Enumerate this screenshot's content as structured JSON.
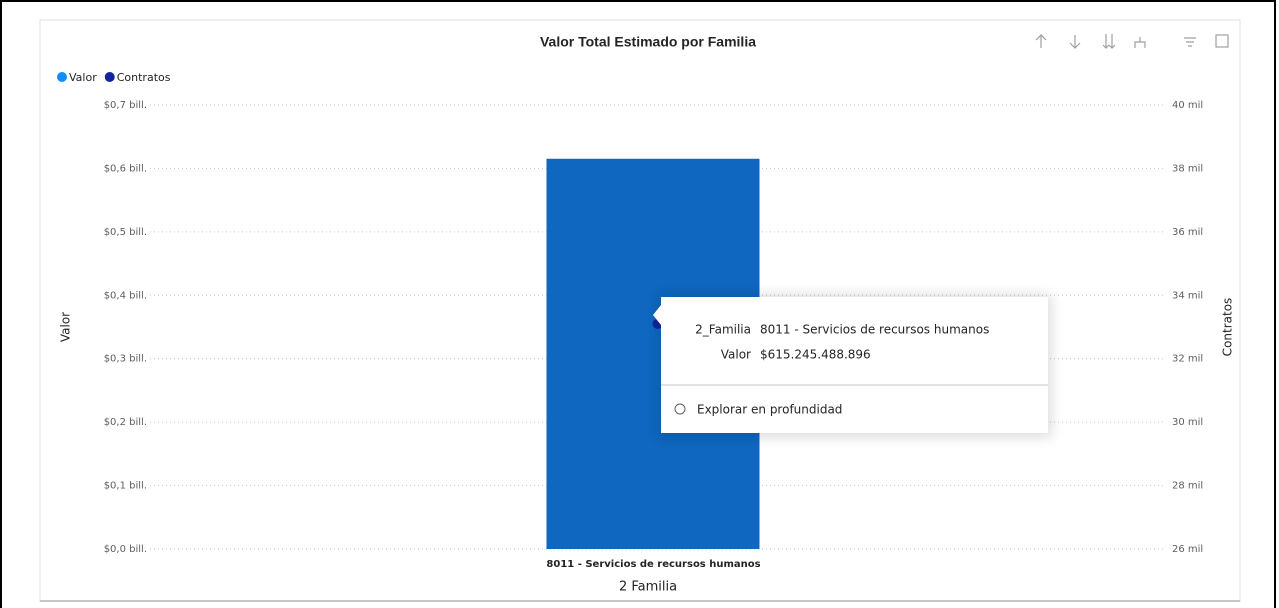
{
  "chart_data": {
    "type": "bar-line",
    "title": "Valor Total Estimado por Familia",
    "categories": [
      "8011 - Servicios de recursos humanos"
    ],
    "x_label": "2 Familia",
    "y_label": "Valor",
    "y2_label": "Contratos",
    "series": [
      {
        "name": "Valor",
        "type": "bar",
        "color": "#0f67bf",
        "legend_color": "#118dff",
        "values": [
          615245488896
        ],
        "value_labels": [
          "$615.245.488.896"
        ]
      },
      {
        "name": "Contratos",
        "type": "line",
        "axis": "y2",
        "color": "#12239e",
        "values": [
          33100
        ]
      }
    ],
    "ylim": [
      0,
      700000000000
    ],
    "yticks": [
      {
        "value": 0,
        "label": "$0,0 bill."
      },
      {
        "value": 100000000000,
        "label": "$0,1 bill."
      },
      {
        "value": 200000000000,
        "label": "$0,2 bill."
      },
      {
        "value": 300000000000,
        "label": "$0,3 bill."
      },
      {
        "value": 400000000000,
        "label": "$0,4 bill."
      },
      {
        "value": 500000000000,
        "label": "$0,5 bill."
      },
      {
        "value": 600000000000,
        "label": "$0,6 bill."
      },
      {
        "value": 700000000000,
        "label": "$0,7 bill."
      }
    ],
    "y2lim": [
      26000,
      40000
    ],
    "y2ticks": [
      {
        "value": 26000,
        "label": "26 mil"
      },
      {
        "value": 28000,
        "label": "28 mil"
      },
      {
        "value": 30000,
        "label": "30 mil"
      },
      {
        "value": 32000,
        "label": "32 mil"
      },
      {
        "value": 34000,
        "label": "34 mil"
      },
      {
        "value": 36000,
        "label": "36 mil"
      },
      {
        "value": 38000,
        "label": "38 mil"
      },
      {
        "value": 40000,
        "label": "40 mil"
      }
    ],
    "grid": true,
    "legend_position": "top-left",
    "tooltip": {
      "field": "2_Familia",
      "action": "Explorar en profundidad"
    }
  }
}
